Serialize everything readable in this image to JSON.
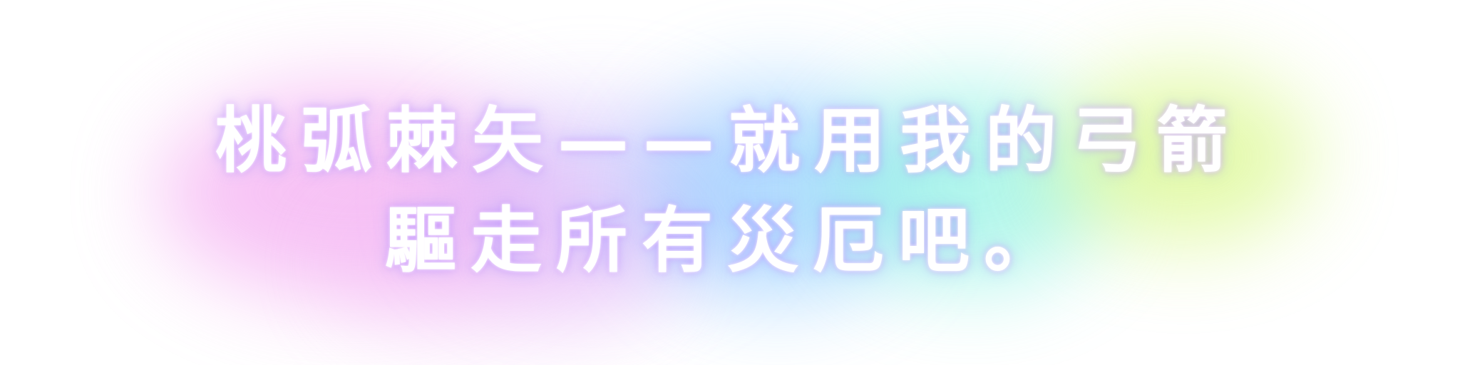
{
  "caption": {
    "line1": "桃弧棘矢——就用我的弓箭",
    "line2": "驅走所有災厄吧。"
  },
  "colors": {
    "text": "#ffffff",
    "glow_pink": "#f3a3f0",
    "glow_violet": "#c9b4fb",
    "glow_blue": "#8ecbff",
    "glow_cyan": "#7ef0df",
    "glow_lime": "#d4f77b"
  }
}
